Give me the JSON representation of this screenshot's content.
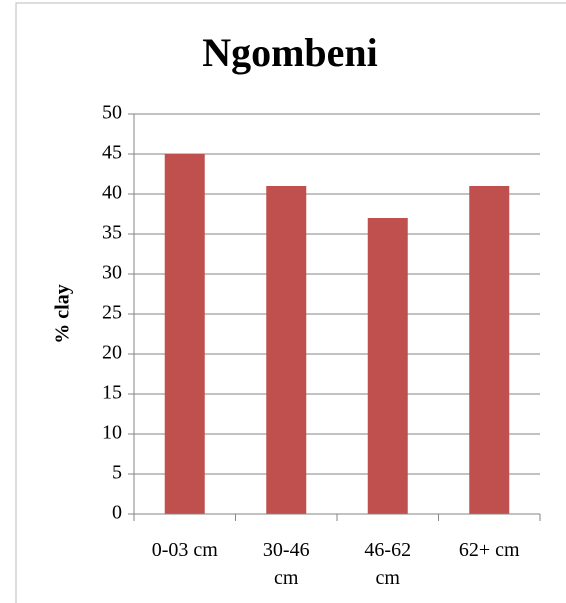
{
  "chart_data": {
    "type": "bar",
    "title": "Ngombeni",
    "y_label": "% clay",
    "categories": [
      "0-03 cm",
      "30-46 cm",
      "46-62 cm",
      "62+ cm"
    ],
    "values": [
      45,
      41,
      37,
      41
    ],
    "color": "#c0504d",
    "ylim": [
      0,
      50
    ],
    "yticks": [
      0,
      5,
      10,
      15,
      20,
      25,
      30,
      35,
      40,
      45,
      50
    ],
    "grid": true
  }
}
